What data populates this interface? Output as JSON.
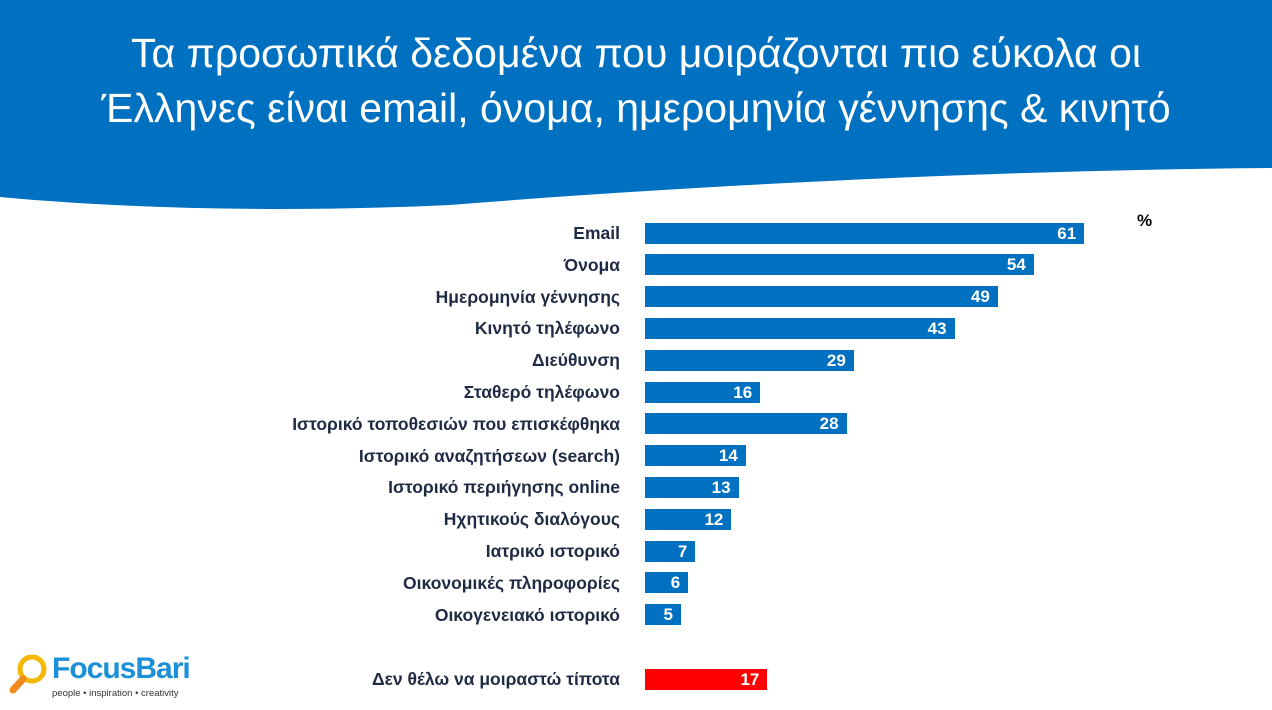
{
  "title": {
    "line1": "Τα προσωπικά δεδομένα που μοιράζονται πιο εύκολα οι",
    "line2": "Έλληνες είναι email, όνομα, ημερομηνία γέννησης & κινητό"
  },
  "logo": {
    "name": "FocusBari",
    "tagline": "people • inspiration • creativity"
  },
  "colors": {
    "header": "#0070C0",
    "bar": "#0070C0",
    "highlight": "#FF0000"
  },
  "chart_data": {
    "type": "bar",
    "orientation": "horizontal",
    "unit": "%",
    "categories": [
      "Email",
      "Όνομα",
      "Ημερομηνία γέννησης",
      "Κινητό τηλέφωνο",
      "Διεύθυνση",
      "Σταθερό τηλέφωνο",
      "Ιστορικό τοποθεσιών που επισκέφθηκα",
      "Ιστορικό αναζητήσεων (search)",
      "Ιστορικό περιήγησης online",
      "Ηχητικούς διαλόγους",
      "Ιατρικό ιστορικό",
      "Οικονομικές πληροφορίες",
      "Οικογενειακό ιστορικό",
      "Δεν θέλω να μοιραστώ τίποτα"
    ],
    "values": [
      61,
      54,
      49,
      43,
      29,
      16,
      28,
      14,
      13,
      12,
      7,
      6,
      5,
      17
    ],
    "highlighted": [
      false,
      false,
      false,
      false,
      false,
      false,
      false,
      false,
      false,
      false,
      false,
      false,
      false,
      true
    ],
    "xlim": [
      0,
      100
    ],
    "grid": false,
    "data_labels": true
  }
}
